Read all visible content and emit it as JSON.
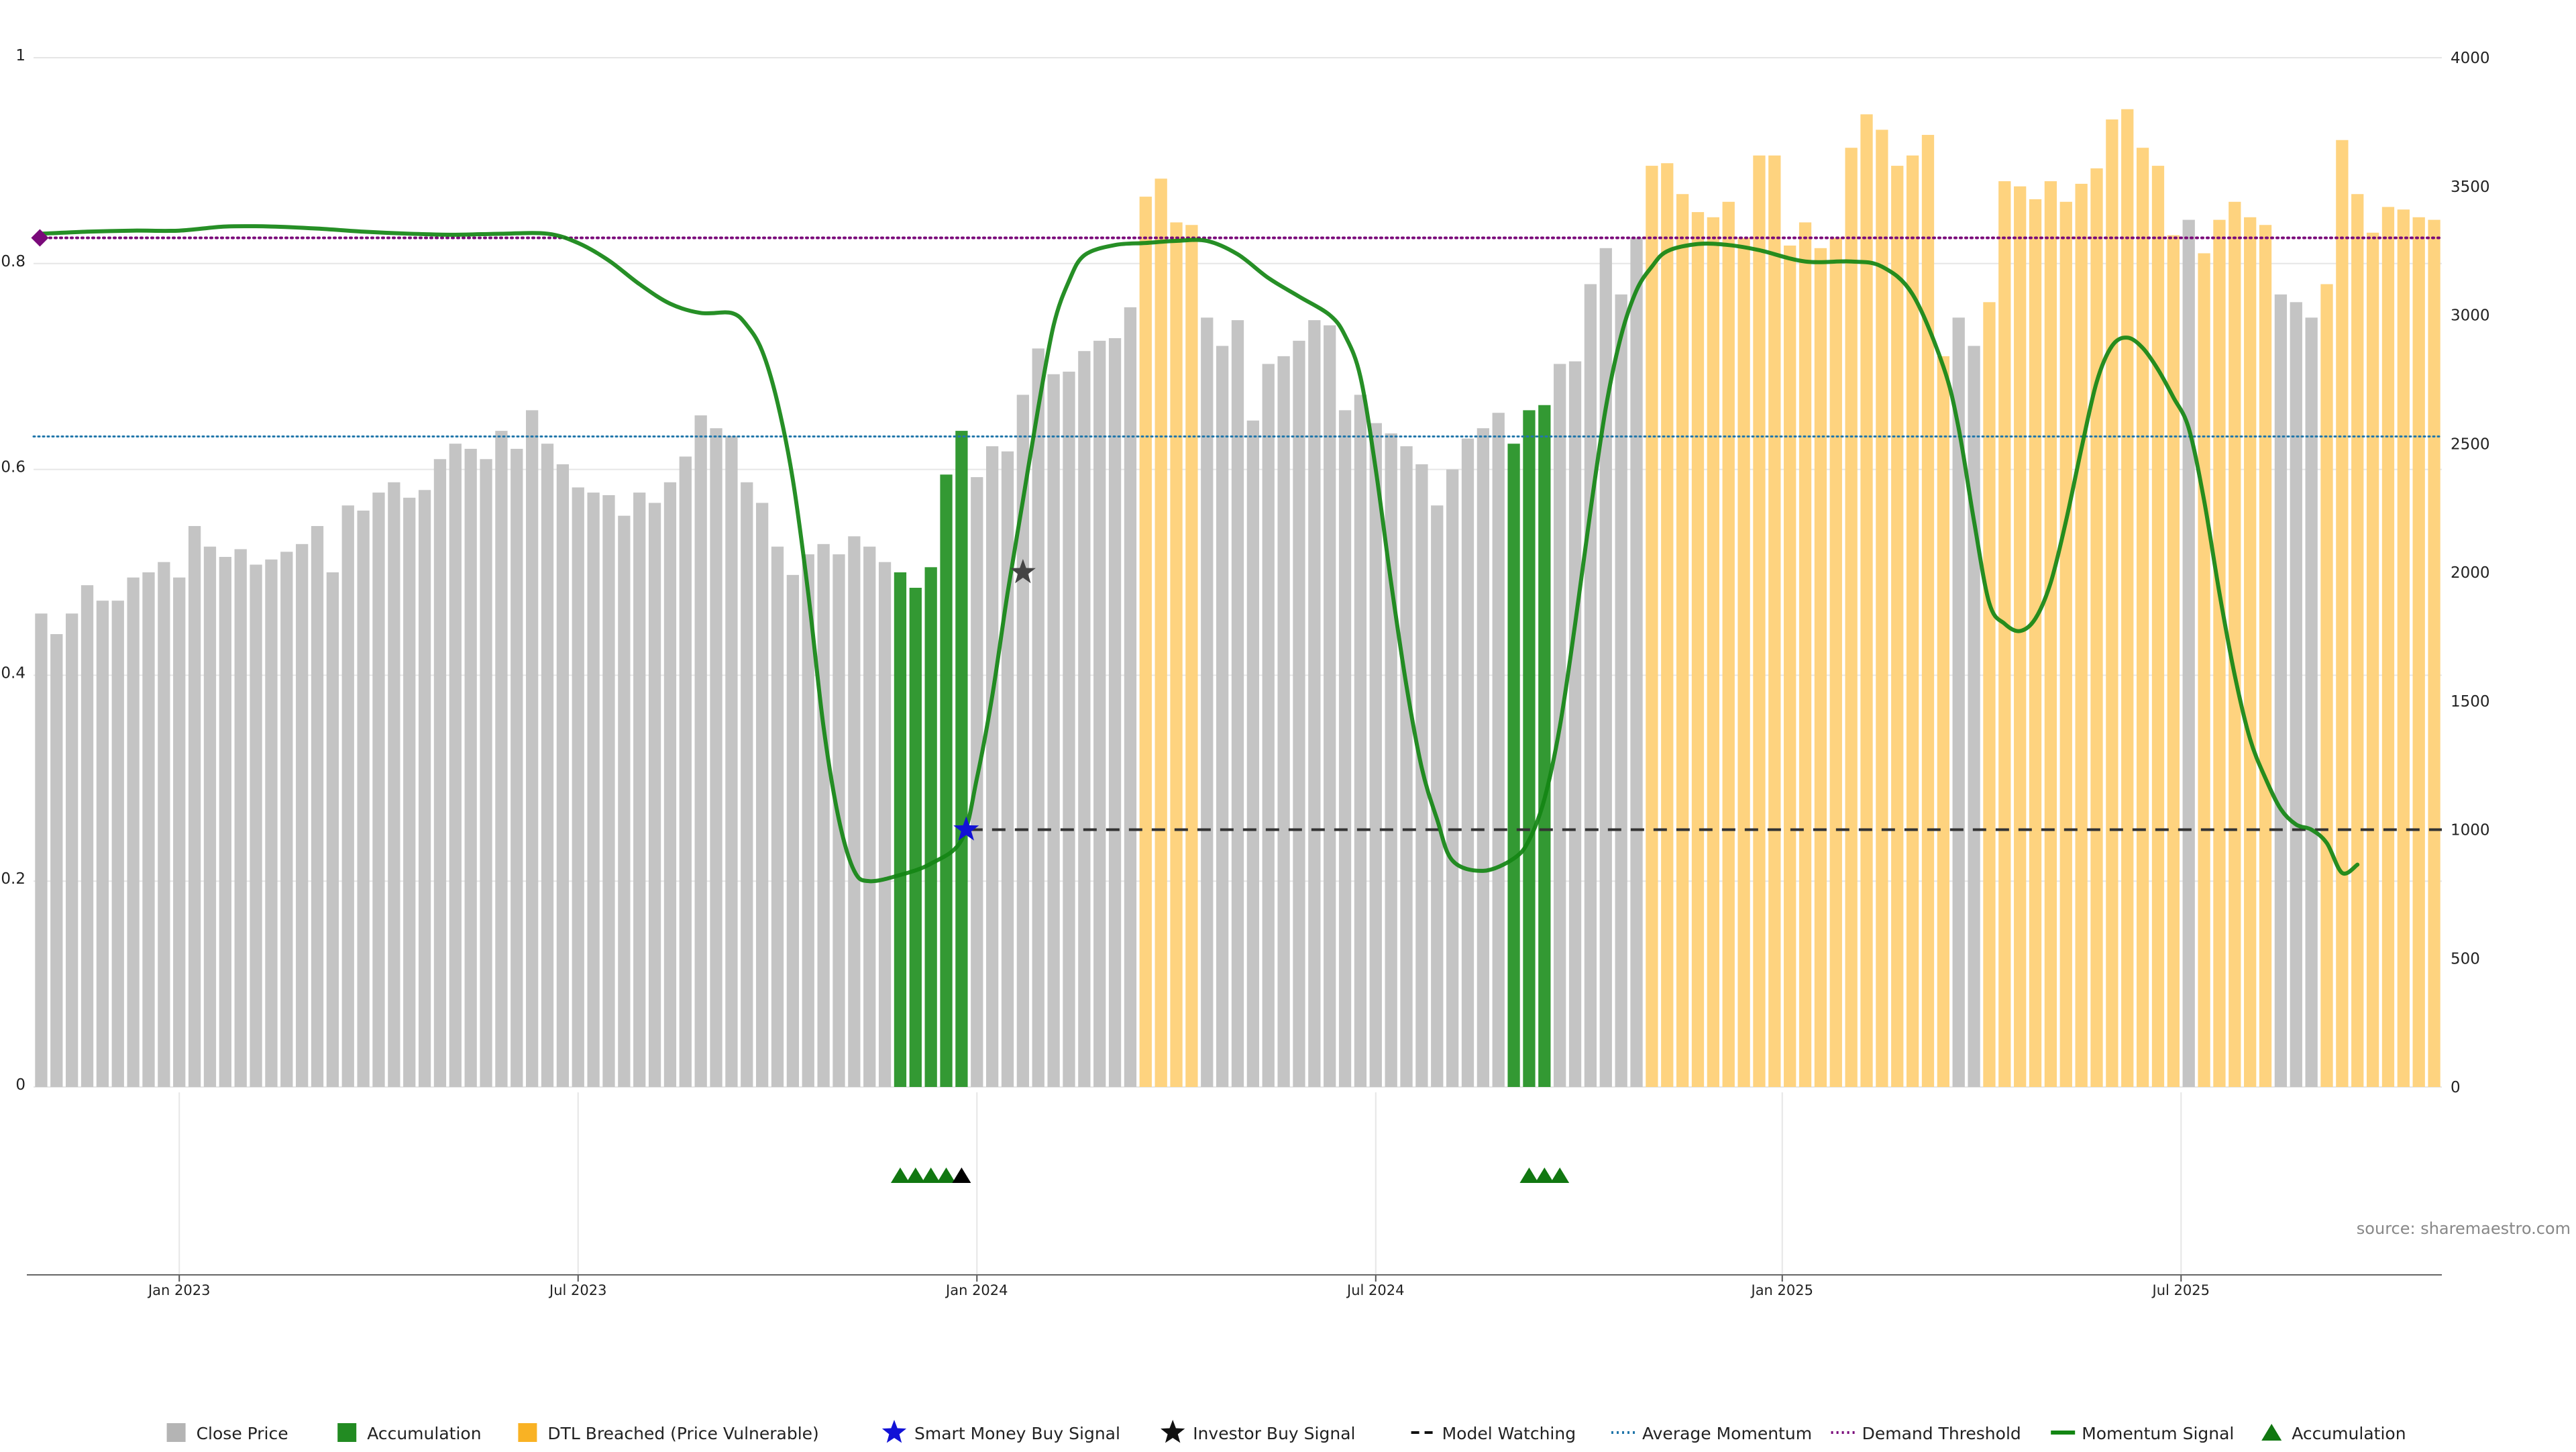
{
  "chart_data": {
    "type": "bar",
    "title": "",
    "xlabel": "",
    "ylabel": "",
    "left_axis": {
      "ylim": [
        0,
        1
      ],
      "ticks": [
        "0",
        "0.2",
        "0.4",
        "0.6",
        "0.8",
        "1"
      ]
    },
    "right_axis": {
      "ylim": [
        0,
        4000
      ],
      "ticks": [
        "0",
        "500",
        "1000",
        "1500",
        "2000",
        "2500",
        "3000",
        "3500",
        "4000"
      ]
    },
    "x_ticks": [
      {
        "label": "Jan 2023",
        "index": 9
      },
      {
        "label": "Jul 2023",
        "index": 35
      },
      {
        "label": "Jan 2024",
        "index": 61
      },
      {
        "label": "Jul 2024",
        "index": 87
      },
      {
        "label": "Jan 2025",
        "index": 113.5
      },
      {
        "label": "Jul 2025",
        "index": 139.5
      }
    ],
    "grid": true,
    "series": [
      {
        "name": "Close Price",
        "axis": "right",
        "values": [
          1840,
          1760,
          1840,
          1950,
          1890,
          1890,
          1980,
          2000,
          2040,
          1980,
          2180,
          2100,
          2060,
          2090,
          2030,
          2050,
          2080,
          2110,
          2180,
          2000,
          2260,
          2240,
          2310,
          2350,
          2290,
          2320,
          2440,
          2500,
          2480,
          2440,
          2550,
          2480,
          2630,
          2500,
          2420,
          2330,
          2310,
          2300,
          2220,
          2310,
          2270,
          2350,
          2450,
          2610,
          2560,
          2530,
          2350,
          2270,
          2100,
          1990,
          2070,
          2110,
          2070,
          2140,
          2100,
          2040,
          2000,
          1940,
          2020,
          2380,
          2550,
          2370,
          2490,
          2470,
          2690,
          2870,
          2770,
          2780,
          2860,
          2900,
          2910,
          3030,
          3460,
          3530,
          3360,
          3350,
          2990,
          2880,
          2980,
          2590,
          2810,
          2840,
          2900,
          2980,
          2960,
          2630,
          2690,
          2580,
          2540,
          2490,
          2420,
          2260,
          2400,
          2520,
          2560,
          2620,
          2500,
          2630,
          2650,
          2810,
          2820,
          3120,
          3260,
          3080,
          3300,
          3580,
          3590,
          3470,
          3400,
          3380,
          3440,
          3300,
          3620,
          3620,
          3270,
          3360,
          3260,
          3300,
          3650,
          3780,
          3720,
          3580,
          3620,
          3700,
          2840,
          2990,
          2880,
          3050,
          3520,
          3500,
          3450,
          3520,
          3440,
          3510,
          3570,
          3760,
          3800,
          3650,
          3580,
          3310,
          3370,
          3240,
          3370,
          3440,
          3380,
          3350,
          3080,
          3050,
          2990,
          3120,
          3680,
          3470,
          3320,
          3420,
          3410,
          3380,
          3370
        ],
        "categories_of_bars": {
          "accumulation": [
            56,
            57,
            58,
            59,
            60,
            96,
            97,
            98
          ],
          "dtl_breached": [
            72,
            73,
            74,
            75,
            105,
            106,
            107,
            108,
            109,
            110,
            111,
            112,
            113,
            114,
            115,
            116,
            117,
            118,
            119,
            120,
            121,
            122,
            123,
            124,
            127,
            128,
            129,
            130,
            131,
            132,
            133,
            134,
            135,
            136,
            137,
            138,
            139,
            141,
            142,
            143,
            144,
            145,
            149,
            150,
            151,
            152,
            153,
            154,
            155,
            156
          ]
        }
      },
      {
        "name": "Momentum Signal",
        "axis": "left",
        "points": [
          [
            0,
            0.829
          ],
          [
            3,
            0.831
          ],
          [
            6,
            0.832
          ],
          [
            9,
            0.832
          ],
          [
            12,
            0.836
          ],
          [
            15,
            0.836
          ],
          [
            18,
            0.834
          ],
          [
            21,
            0.831
          ],
          [
            24,
            0.829
          ],
          [
            27,
            0.828
          ],
          [
            30,
            0.829
          ],
          [
            33,
            0.829
          ],
          [
            35,
            0.82
          ],
          [
            37,
            0.803
          ],
          [
            39,
            0.78
          ],
          [
            41,
            0.761
          ],
          [
            43,
            0.752
          ],
          [
            45,
            0.752
          ],
          [
            46,
            0.74
          ],
          [
            47,
            0.715
          ],
          [
            48,
            0.665
          ],
          [
            49,
            0.59
          ],
          [
            50,
            0.48
          ],
          [
            51,
            0.35
          ],
          [
            52,
            0.26
          ],
          [
            53,
            0.21
          ],
          [
            54,
            0.2
          ],
          [
            56,
            0.206
          ],
          [
            58,
            0.217
          ],
          [
            60,
            0.24
          ],
          [
            61,
            0.3
          ],
          [
            62,
            0.38
          ],
          [
            63,
            0.48
          ],
          [
            64,
            0.57
          ],
          [
            65,
            0.66
          ],
          [
            66,
            0.74
          ],
          [
            67,
            0.783
          ],
          [
            68,
            0.808
          ],
          [
            70,
            0.818
          ],
          [
            72,
            0.82
          ],
          [
            74,
            0.822
          ],
          [
            76,
            0.822
          ],
          [
            78,
            0.809
          ],
          [
            80,
            0.786
          ],
          [
            82,
            0.768
          ],
          [
            84,
            0.75
          ],
          [
            85,
            0.73
          ],
          [
            86,
            0.69
          ],
          [
            87,
            0.6
          ],
          [
            88,
            0.49
          ],
          [
            89,
            0.39
          ],
          [
            90,
            0.31
          ],
          [
            91,
            0.26
          ],
          [
            92,
            0.22
          ],
          [
            94,
            0.21
          ],
          [
            96,
            0.222
          ],
          [
            97,
            0.24
          ],
          [
            98,
            0.28
          ],
          [
            99,
            0.35
          ],
          [
            100,
            0.45
          ],
          [
            101,
            0.56
          ],
          [
            102,
            0.66
          ],
          [
            103,
            0.73
          ],
          [
            104,
            0.774
          ],
          [
            105,
            0.797
          ],
          [
            106,
            0.812
          ],
          [
            108,
            0.819
          ],
          [
            110,
            0.818
          ],
          [
            112,
            0.813
          ],
          [
            115,
            0.802
          ],
          [
            118,
            0.802
          ],
          [
            120,
            0.797
          ],
          [
            122,
            0.77
          ],
          [
            124,
            0.7
          ],
          [
            125,
            0.64
          ],
          [
            126,
            0.55
          ],
          [
            127,
            0.47
          ],
          [
            128,
            0.45
          ],
          [
            129,
            0.443
          ],
          [
            130,
            0.455
          ],
          [
            131,
            0.49
          ],
          [
            132,
            0.55
          ],
          [
            133,
            0.62
          ],
          [
            134,
            0.685
          ],
          [
            135,
            0.72
          ],
          [
            136,
            0.728
          ],
          [
            137,
            0.718
          ],
          [
            138,
            0.697
          ],
          [
            139,
            0.67
          ],
          [
            140,
            0.64
          ],
          [
            141,
            0.57
          ],
          [
            142,
            0.48
          ],
          [
            143,
            0.4
          ],
          [
            144,
            0.338
          ],
          [
            145,
            0.3
          ],
          [
            146,
            0.27
          ],
          [
            147,
            0.255
          ],
          [
            148,
            0.25
          ],
          [
            149,
            0.237
          ],
          [
            150,
            0.208
          ],
          [
            151,
            0.216
          ]
        ]
      },
      {
        "name": "Demand Threshold",
        "axis": "left",
        "value": 0.825
      },
      {
        "name": "Average Momentum",
        "axis": "left",
        "value": 0.632
      },
      {
        "name": "Model Watching",
        "axis": "left",
        "value": 0.25,
        "from_index": 60.5,
        "to_index": 156.5
      },
      {
        "name": "Smart Money Buy Signal",
        "axis": "left",
        "points": [
          [
            60.3,
            0.25
          ]
        ]
      },
      {
        "name": "Investor Buy Signal",
        "axis": "left",
        "points": [
          [
            64,
            0.5
          ]
        ]
      },
      {
        "name": "Accumulation",
        "type": "triangle-markers",
        "indices": [
          56,
          57,
          58,
          59,
          97,
          98,
          99
        ],
        "black_indices": [
          60
        ]
      }
    ],
    "colors": {
      "close_price": "#c4c4c4",
      "accumulation_bar": "#339933",
      "dtl_breached": "#fed37f",
      "momentum": "#138613",
      "demand_threshold": "#7a0a7a",
      "average_momentum": "#2277aa",
      "model_watching": "#333333",
      "smart_money": "#1212d6",
      "investor": "#111111",
      "accumulation_marker": "#117711",
      "grid": "#e6e6e6"
    },
    "annotation": "source: sharemaestro.com",
    "legend": {
      "placement": "bottom-center",
      "items": [
        {
          "label": "Close Price",
          "icon": "square",
          "color": "#b4b4b4"
        },
        {
          "label": "Accumulation",
          "icon": "square",
          "color": "#228b22"
        },
        {
          "label": "DTL Breached (Price Vulnerable)",
          "icon": "square",
          "color": "#f9b224"
        },
        {
          "label": "Smart Money Buy Signal",
          "icon": "star",
          "color": "#1212d6"
        },
        {
          "label": "Investor Buy Signal",
          "icon": "star",
          "color": "#111111"
        },
        {
          "label": "Model Watching",
          "icon": "dashed-line",
          "color": "#111111"
        },
        {
          "label": "Average Momentum",
          "icon": "dotted-line",
          "color": "#2277aa"
        },
        {
          "label": "Demand Threshold",
          "icon": "dotted-line",
          "color": "#7a0a7a"
        },
        {
          "label": "Momentum Signal",
          "icon": "solid-line",
          "color": "#138613"
        },
        {
          "label": "Accumulation",
          "icon": "triangle",
          "color": "#117711"
        }
      ]
    }
  }
}
